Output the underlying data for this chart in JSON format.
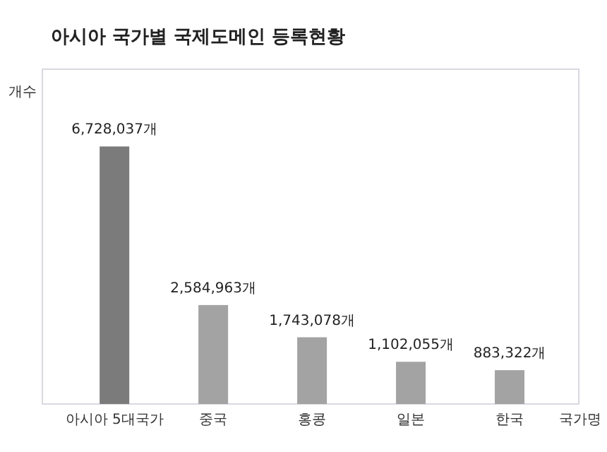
{
  "chart_data": {
    "type": "bar",
    "title": "아시아 국가별 국제도메인 등록현황",
    "xlabel": "국가명",
    "ylabel": "개수",
    "categories": [
      "아시아 5대국가",
      "중국",
      "홍콩",
      "일본",
      "한국"
    ],
    "values": [
      6728037,
      2584963,
      1743078,
      1102055,
      883322
    ],
    "value_labels": [
      "6,728,037개",
      "2,584,963개",
      "1,743,078개",
      "1,102,055개",
      "883,322개"
    ],
    "colors": [
      "#7b7b7b",
      "#a3a3a3",
      "#a3a3a3",
      "#a3a3a3",
      "#a3a3a3"
    ]
  }
}
